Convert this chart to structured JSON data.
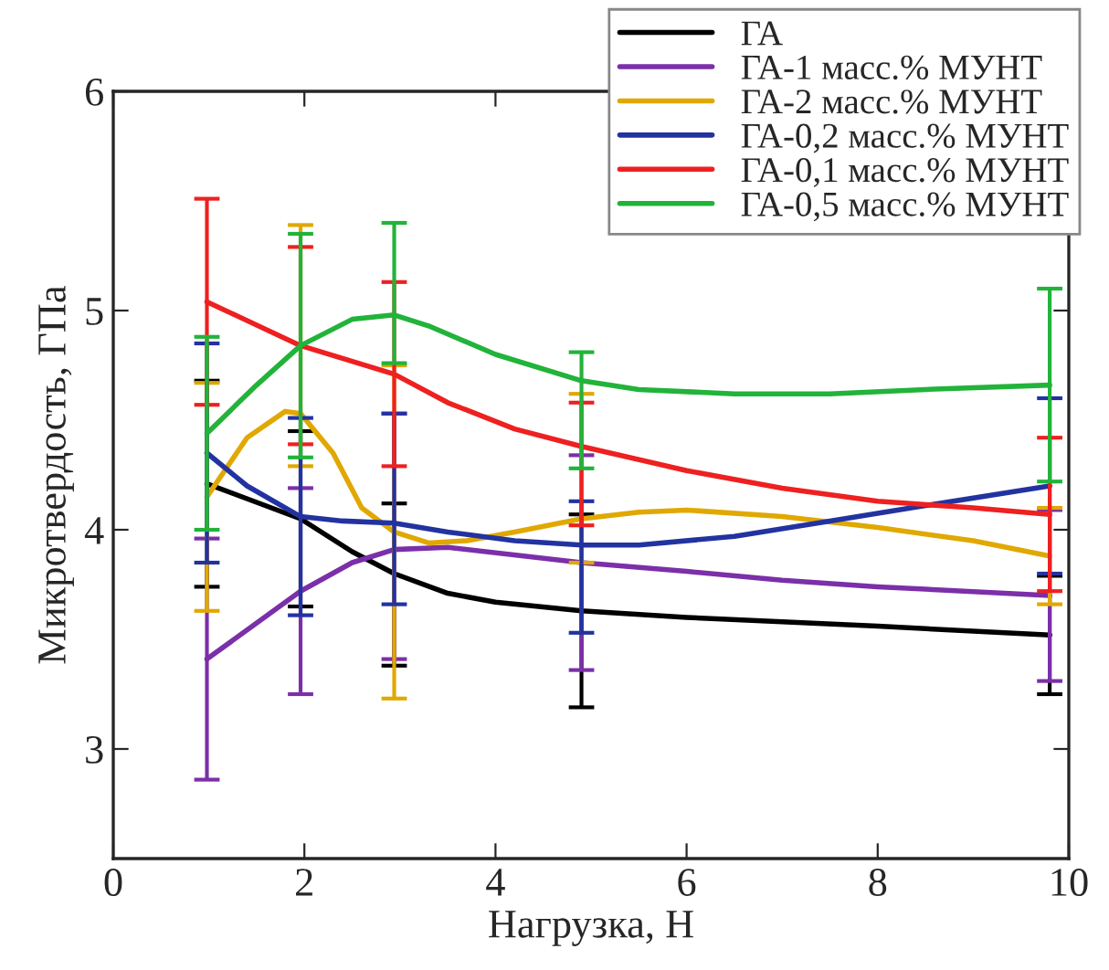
{
  "chart_data": {
    "type": "line",
    "xlabel": "Нагрузка, Н",
    "ylabel": "Микротвердость, ГПа",
    "xlim": [
      0,
      10
    ],
    "xticks": [
      0,
      2,
      4,
      6,
      8,
      10
    ],
    "ylim": [
      2.5,
      6
    ],
    "yticks": [
      3,
      4,
      5,
      6
    ],
    "grid": false,
    "legend": "top right",
    "marker": "none",
    "line_style": "solid",
    "series": [
      {
        "name": "ГА",
        "color": "#000000",
        "x": [
          0.98,
          1.96,
          2.5,
          2.94,
          3.5,
          4.0,
          4.9,
          6,
          7,
          8,
          9.8
        ],
        "values": [
          4.21,
          4.05,
          3.9,
          3.8,
          3.71,
          3.67,
          3.63,
          3.6,
          3.58,
          3.56,
          3.52
        ],
        "errors": [
          0.47,
          0.4,
          null,
          [
            3.38,
            4.12
          ],
          null,
          null,
          0.44,
          null,
          null,
          null,
          0.27
        ]
      },
      {
        "name": "ГА-1 масс.% МУНТ",
        "color": "#7b2fa8",
        "x": [
          0.98,
          1.96,
          2.5,
          2.94,
          3.5,
          4.9,
          6,
          7,
          8,
          9.8
        ],
        "values": [
          3.41,
          3.72,
          3.85,
          3.91,
          3.92,
          3.85,
          3.81,
          3.77,
          3.74,
          3.7
        ],
        "errors": [
          0.55,
          0.47,
          null,
          [
            3.41,
            4.53
          ],
          null,
          0.49,
          null,
          null,
          null,
          0.39
        ]
      },
      {
        "name": "ГА-2 масс.% МУНТ",
        "color": "#e0a800",
        "x": [
          0.98,
          1.4,
          1.8,
          1.96,
          2.3,
          2.6,
          2.94,
          3.3,
          3.7,
          4.2,
          4.9,
          5.5,
          6,
          7,
          8,
          9,
          9.8
        ],
        "values": [
          4.15,
          4.42,
          4.54,
          4.53,
          4.35,
          4.1,
          3.99,
          3.94,
          3.95,
          3.99,
          4.05,
          4.08,
          4.09,
          4.06,
          4.01,
          3.95,
          3.88
        ],
        "errors": [
          0.52,
          null,
          null,
          [
            4.29,
            5.39
          ],
          null,
          null,
          0.76,
          null,
          null,
          null,
          [
            3.85,
            4.62
          ],
          null,
          null,
          null,
          null,
          null,
          0.22
        ]
      },
      {
        "name": "ГА-0,2 масс.% МУНТ",
        "color": "#2233a0",
        "x": [
          0.98,
          1.4,
          1.96,
          2.4,
          2.94,
          3.5,
          4.2,
          4.9,
          5.5,
          6.5,
          7.5,
          8.5,
          9.8
        ],
        "values": [
          4.35,
          4.2,
          4.06,
          4.04,
          4.03,
          3.99,
          3.95,
          3.93,
          3.93,
          3.97,
          4.04,
          4.11,
          4.2
        ],
        "errors": [
          0.5,
          null,
          0.45,
          null,
          [
            3.66,
            4.53
          ],
          null,
          null,
          [
            3.53,
            4.13
          ],
          null,
          null,
          null,
          null,
          0.4
        ]
      },
      {
        "name": "ГА-0,1 масс.% МУНТ",
        "color": "#ee2020",
        "x": [
          0.98,
          1.96,
          2.94,
          3.5,
          4.2,
          4.9,
          6,
          7,
          8,
          9,
          9.8
        ],
        "values": [
          5.04,
          4.84,
          4.71,
          4.58,
          4.46,
          4.38,
          4.27,
          4.19,
          4.13,
          4.1,
          4.07
        ],
        "errors": [
          0.47,
          0.45,
          0.42,
          null,
          null,
          [
            4.02,
            4.58
          ],
          null,
          null,
          null,
          null,
          0.35
        ]
      },
      {
        "name": "ГА-0,5 масс.% МУНТ",
        "color": "#22b33a",
        "x": [
          0.98,
          1.5,
          1.96,
          2.5,
          2.94,
          3.3,
          4,
          4.9,
          5.5,
          6.5,
          7.5,
          8.5,
          9.8
        ],
        "values": [
          4.44,
          4.66,
          4.84,
          4.96,
          4.98,
          4.93,
          4.8,
          4.68,
          4.64,
          4.62,
          4.62,
          4.64,
          4.66
        ],
        "errors": [
          0.44,
          null,
          0.51,
          null,
          [
            4.76,
            5.4
          ],
          null,
          null,
          [
            4.28,
            4.81
          ],
          null,
          null,
          null,
          null,
          0.44
        ]
      }
    ]
  }
}
